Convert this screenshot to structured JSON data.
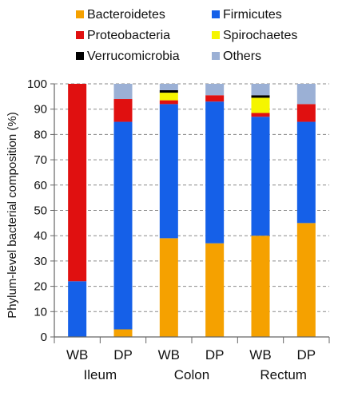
{
  "chart_data": {
    "type": "bar",
    "stacked": true,
    "categories": [
      "WB",
      "DP",
      "WB",
      "DP",
      "WB",
      "DP"
    ],
    "groups": [
      {
        "label": "Ileum",
        "categories": [
          0,
          1
        ]
      },
      {
        "label": "Colon",
        "categories": [
          2,
          3
        ]
      },
      {
        "label": "Rectum",
        "categories": [
          4,
          5
        ]
      }
    ],
    "ylabel": "Phylum-level bacterial composition (%)",
    "xlabel": "",
    "ylim": [
      0,
      100
    ],
    "yticks": [
      0,
      10,
      20,
      30,
      40,
      50,
      60,
      70,
      80,
      90,
      100
    ],
    "grid": true,
    "legend_position": "top",
    "series": [
      {
        "name": "Bacteroidetes",
        "color": "#F5A100",
        "values": [
          0,
          3,
          39,
          37,
          40,
          45
        ]
      },
      {
        "name": "Firmicutes",
        "color": "#1560E8",
        "values": [
          22,
          82,
          53,
          56,
          47,
          40
        ]
      },
      {
        "name": "Proteobacteria",
        "color": "#E01010",
        "values": [
          78,
          9,
          1.5,
          2.5,
          1.5,
          7
        ]
      },
      {
        "name": "Spirochaetes",
        "color": "#F5F500",
        "values": [
          0,
          0,
          3,
          0,
          6,
          0
        ]
      },
      {
        "name": "Verrucomicrobia",
        "color": "#000000",
        "values": [
          0,
          0,
          1,
          0,
          1,
          0
        ]
      },
      {
        "name": "Others",
        "color": "#9BB0D5",
        "values": [
          0,
          6,
          2.5,
          4.5,
          4.5,
          8
        ]
      }
    ]
  }
}
